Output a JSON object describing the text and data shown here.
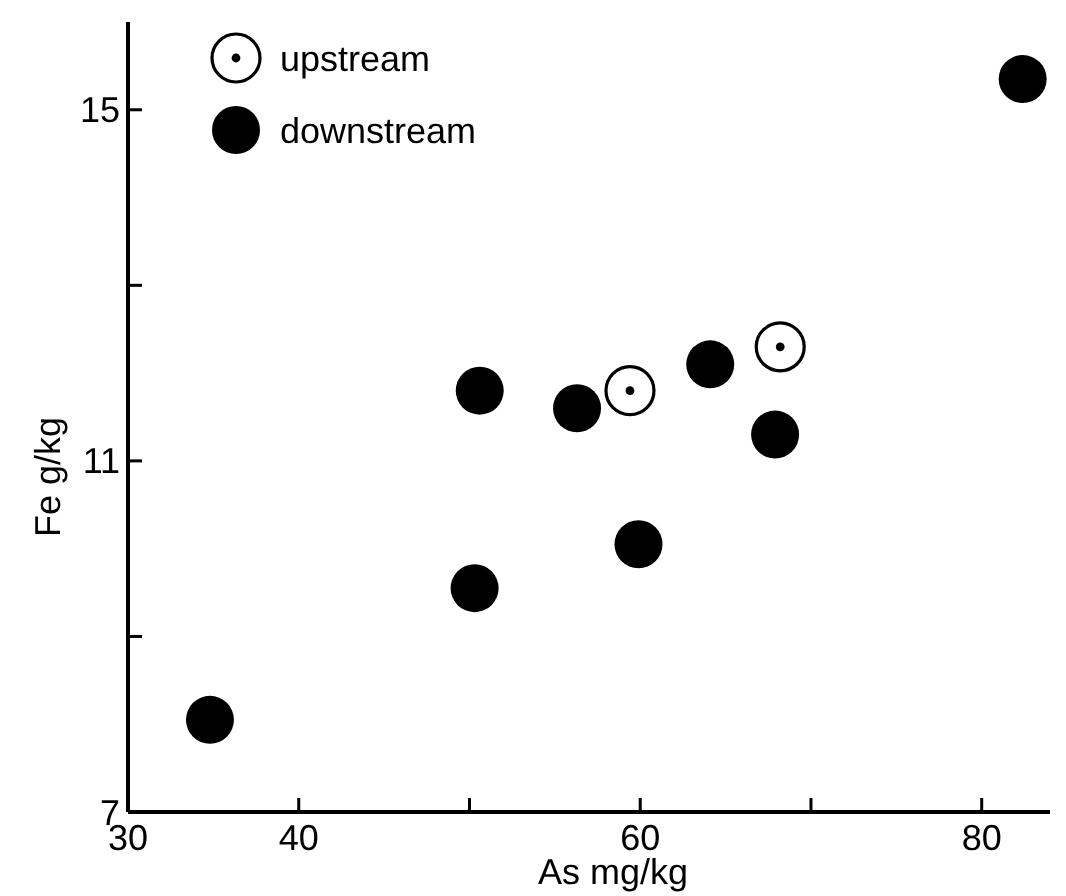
{
  "chart_data": {
    "type": "scatter",
    "xlabel": "As mg/kg",
    "ylabel": "Fe g/kg",
    "xlim": [
      30,
      84
    ],
    "ylim": [
      7,
      16
    ],
    "xticks": [
      30,
      40,
      {
        "value": 50,
        "label": null
      },
      60,
      {
        "value": 70,
        "label": null
      },
      80
    ],
    "yticks": [
      7,
      {
        "value": 9,
        "label": null
      },
      11,
      {
        "value": 13,
        "label": null
      },
      15
    ],
    "grid": false,
    "legend": "top left",
    "marker": "circle",
    "series": [
      {
        "name": "upstream",
        "color": "#ffffff",
        "x": [
          59.4,
          68.2
        ],
        "values": [
          11.8,
          12.3
        ]
      },
      {
        "name": "downstream",
        "color": "#000000",
        "x": [
          34.8,
          50.3,
          50.6,
          56.3,
          59.9,
          64.1,
          67.9,
          82.4
        ],
        "values": [
          8.05,
          9.55,
          11.8,
          11.6,
          10.05,
          12.1,
          11.3,
          15.35
        ]
      }
    ]
  }
}
